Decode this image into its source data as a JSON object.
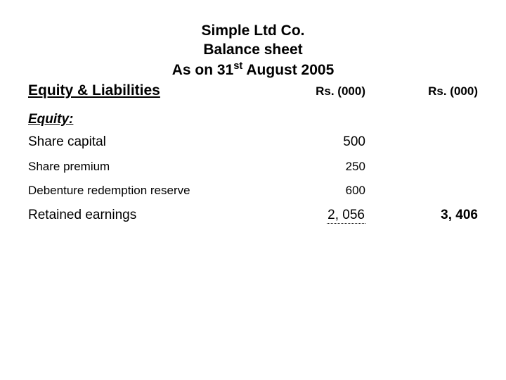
{
  "header": {
    "company": "Simple Ltd Co.",
    "title": "Balance sheet",
    "date_prefix": "As on 31",
    "date_super": "st",
    "date_suffix": " August 2005"
  },
  "section": {
    "title": "Equity & Liabilities",
    "col1_header": "Rs. (000)",
    "col2_header": "Rs. (000)"
  },
  "equity": {
    "heading": "Equity:",
    "rows": [
      {
        "label": "Share capital",
        "value": "500"
      },
      {
        "label": "Share premium",
        "value": "250"
      },
      {
        "label": "Debenture redemption reserve",
        "value": "600"
      },
      {
        "label": "Retained earnings",
        "value": "2, 056"
      }
    ],
    "total": "3, 406"
  },
  "colors": {
    "background": "#ffffff",
    "text": "#000000"
  }
}
